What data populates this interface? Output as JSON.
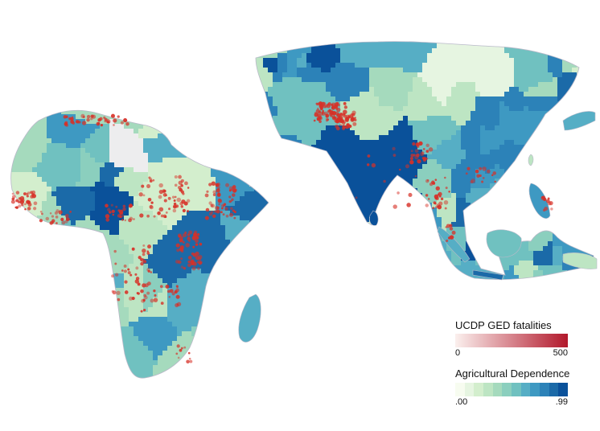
{
  "legend": {
    "fatalities": {
      "title": "UCDP GED fatalities",
      "min_label": "0",
      "max_label": "500",
      "color_low": "#fbf0ee",
      "color_high": "#b2182b"
    },
    "agri": {
      "title": "Agricultural Dependence",
      "min_label": ".00",
      "max_label": ".99",
      "bins": [
        "#f7fcf0",
        "#e6f5e1",
        "#d3eecd",
        "#bde5c3",
        "#a5dabd",
        "#8bcfbe",
        "#70c1c0",
        "#56aec5",
        "#3e99c2",
        "#2c82b8",
        "#1b6aa8",
        "#0a519a"
      ]
    }
  },
  "map_colors": {
    "nodata": "#ededee",
    "border": "#b9b9c9",
    "event": "#d73027"
  },
  "regions": [
    {
      "name": "africa-region",
      "values": [
        0.3,
        0.45,
        0.25,
        0.5,
        0.2,
        0.65,
        0.75,
        0.35,
        0.55,
        0.4,
        0.7,
        0.6,
        0.85,
        0.3,
        0.45,
        0.9,
        0.5,
        0.35,
        0.65,
        0.25
      ]
    },
    {
      "name": "asia-region",
      "values": [
        0.45,
        0.7,
        0.2,
        0.8,
        0.95,
        0.98,
        0.75,
        0.55,
        0.85,
        0.6,
        0.4,
        0.9,
        0.35,
        0.65,
        0.72,
        0.5,
        0.92,
        0.3,
        0.68,
        0.58
      ]
    }
  ]
}
